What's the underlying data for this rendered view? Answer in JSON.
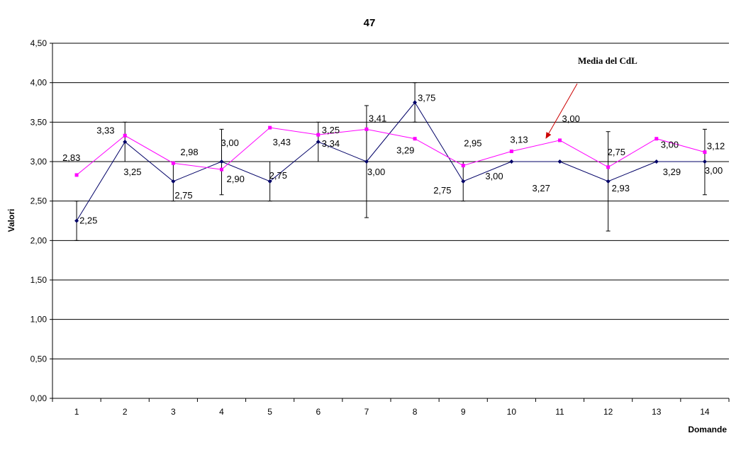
{
  "chart_data": {
    "type": "line",
    "title": "47",
    "xlabel": "Domande",
    "ylabel": "Valori",
    "categories": [
      "1",
      "2",
      "3",
      "4",
      "5",
      "6",
      "7",
      "8",
      "9",
      "10",
      "11",
      "12",
      "13",
      "14"
    ],
    "ylim": [
      0,
      4.5
    ],
    "yticks": [
      "0,00",
      "0,50",
      "1,00",
      "1,50",
      "2,00",
      "2,50",
      "3,00",
      "3,50",
      "4,00",
      "4,50"
    ],
    "grid": true,
    "series": [
      {
        "color": "#000066",
        "marker": "diamond",
        "values": [
          2.25,
          3.25,
          2.75,
          3.0,
          2.75,
          3.25,
          3.0,
          3.75,
          2.75,
          3.0,
          3.0,
          2.75,
          3.0,
          3.0
        ],
        "error_low": [
          2.0,
          3.0,
          2.5,
          2.58,
          2.5,
          3.0,
          2.29,
          3.5,
          2.5,
          3.0,
          3.0,
          2.12,
          3.0,
          2.58
        ],
        "error_high": [
          2.5,
          3.5,
          3.0,
          3.41,
          3.0,
          3.5,
          3.71,
          4.0,
          3.0,
          3.0,
          3.0,
          3.38,
          3.0,
          3.41
        ]
      },
      {
        "color": "#ff00ff",
        "marker": "square",
        "values": [
          2.83,
          3.33,
          2.98,
          2.9,
          3.43,
          3.34,
          3.41,
          3.29,
          2.95,
          3.13,
          3.27,
          2.93,
          3.29,
          3.12
        ]
      }
    ],
    "data_labels": [
      {
        "text": "2,25",
        "x": 1,
        "y": 2.25,
        "dx": 4,
        "dy": 4
      },
      {
        "text": "2,83",
        "x": 1,
        "y": 2.83,
        "dx": -20,
        "dy": -20
      },
      {
        "text": "3,33",
        "x": 2,
        "y": 3.33,
        "dx": -40,
        "dy": -3
      },
      {
        "text": "3,25",
        "x": 2,
        "y": 3.25,
        "dx": -2,
        "dy": 47
      },
      {
        "text": "2,98",
        "x": 3,
        "y": 2.98,
        "dx": 10,
        "dy": -11
      },
      {
        "text": "2,75",
        "x": 3,
        "y": 2.75,
        "dx": 2,
        "dy": 24
      },
      {
        "text": "3,00",
        "x": 4,
        "y": 3.0,
        "dx": -1,
        "dy": -22
      },
      {
        "text": "2,90",
        "x": 4,
        "y": 2.9,
        "dx": 7,
        "dy": 18
      },
      {
        "text": "2,75",
        "x": 5,
        "y": 2.75,
        "dx": -1,
        "dy": -4
      },
      {
        "text": "3,43",
        "x": 5,
        "y": 3.43,
        "dx": 4,
        "dy": 25
      },
      {
        "text": "3,25",
        "x": 6,
        "y": 3.25,
        "dx": 5,
        "dy": -12
      },
      {
        "text": "3,34",
        "x": 6,
        "y": 3.34,
        "dx": 5,
        "dy": 17
      },
      {
        "text": "3,41",
        "x": 7,
        "y": 3.41,
        "dx": 3,
        "dy": -11
      },
      {
        "text": "3,00",
        "x": 7,
        "y": 3.0,
        "dx": 1,
        "dy": 19
      },
      {
        "text": "3,75",
        "x": 8,
        "y": 3.75,
        "dx": 4,
        "dy": -2
      },
      {
        "text": "3,29",
        "x": 8,
        "y": 3.29,
        "dx": -26,
        "dy": 21
      },
      {
        "text": "2,95",
        "x": 9,
        "y": 2.95,
        "dx": 1,
        "dy": -27
      },
      {
        "text": "2,75",
        "x": 9,
        "y": 2.75,
        "dx": -42,
        "dy": 17
      },
      {
        "text": "3,13",
        "x": 10,
        "y": 3.13,
        "dx": -2,
        "dy": -12
      },
      {
        "text": "3,00",
        "x": 10,
        "y": 3.0,
        "dx": -37,
        "dy": 25
      },
      {
        "text": "3,00",
        "x": 11,
        "y": 3.27,
        "dx": 3,
        "dy": -26
      },
      {
        "text": "3,27",
        "x": 11,
        "y": 3.0,
        "dx": -39,
        "dy": 42
      },
      {
        "text": "2,75",
        "x": 12,
        "y": 2.93,
        "dx": -1,
        "dy": -17
      },
      {
        "text": "2,93",
        "x": 12,
        "y": 2.75,
        "dx": 5,
        "dy": 14
      },
      {
        "text": "3,00",
        "x": 13,
        "y": 3.29,
        "dx": 6,
        "dy": 13
      },
      {
        "text": "3,29",
        "x": 13,
        "y": 3.0,
        "dx": 9,
        "dy": 19
      },
      {
        "text": "3,12",
        "x": 14,
        "y": 3.12,
        "dx": 3,
        "dy": -4
      },
      {
        "text": "3,00",
        "x": 14,
        "y": 3.0,
        "dx": 0,
        "dy": 17
      }
    ],
    "annotation": {
      "text": "Media del CdL",
      "arrow_color": "#cc0000",
      "points_to": {
        "x": 10.75,
        "y": 3.3
      }
    }
  }
}
